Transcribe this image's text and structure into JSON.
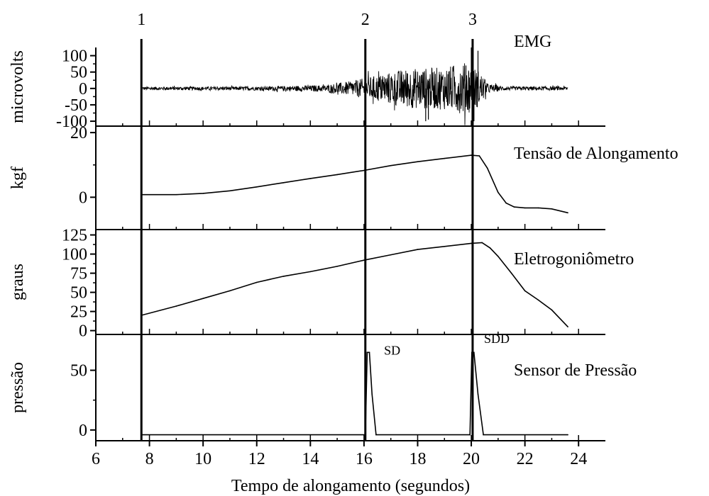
{
  "chart_data": {
    "type": "line",
    "x_axis": {
      "label": "Tempo de alongamento (segundos)",
      "ticks": [
        "6",
        "8",
        "10",
        "12",
        "14",
        "16",
        "18",
        "20",
        "22",
        "24"
      ],
      "range": [
        6,
        25
      ]
    },
    "markers": [
      {
        "label": "1",
        "x": 7.7
      },
      {
        "label": "2",
        "x": 16.05
      },
      {
        "label": "3",
        "x": 20.05
      }
    ],
    "panels": [
      {
        "title": "EMG",
        "ylabel": "microvolts",
        "ylim": [
          -115,
          125
        ],
        "yticks": [
          "100",
          "50",
          "0",
          "-50",
          "-100"
        ],
        "yticks_values": [
          100,
          50,
          0,
          -50,
          -100
        ],
        "color": "#000000",
        "signal": "emg",
        "envelope": [
          [
            7.7,
            5
          ],
          [
            12,
            6
          ],
          [
            14.5,
            10
          ],
          [
            15.5,
            22
          ],
          [
            16.2,
            35
          ],
          [
            17.5,
            60
          ],
          [
            19,
            65
          ],
          [
            19.8,
            80
          ],
          [
            20.3,
            55
          ],
          [
            20.6,
            15
          ],
          [
            21.2,
            6
          ],
          [
            23.6,
            6
          ]
        ],
        "spikes": [
          [
            18.3,
            -100
          ],
          [
            18.4,
            -95
          ],
          [
            20.0,
            125
          ],
          [
            20.1,
            -100
          ],
          [
            20.25,
            115
          ],
          [
            19.8,
            70
          ]
        ]
      },
      {
        "title": "Tensão de Alongamento",
        "ylabel": "kgf",
        "ylim": [
          -10,
          22
        ],
        "yticks": [
          "20",
          "0"
        ],
        "yticks_values": [
          20,
          0
        ],
        "color": "#000000",
        "x": [
          7.7,
          9,
          10,
          11,
          12,
          13,
          14,
          15,
          16,
          17,
          18,
          19,
          20,
          20.3,
          20.6,
          21,
          21.3,
          21.6,
          22,
          22.5,
          23,
          23.6
        ],
        "y": [
          0.8,
          0.8,
          1.2,
          2.0,
          3.2,
          4.5,
          5.8,
          7.0,
          8.3,
          9.8,
          11.0,
          12.0,
          13.0,
          12.8,
          9.0,
          1.5,
          -1.8,
          -3.0,
          -3.3,
          -3.3,
          -3.6,
          -4.8
        ]
      },
      {
        "title": "Eletrogoniômetro",
        "ylabel": "graus",
        "ylim": [
          -5,
          132
        ],
        "yticks": [
          "125",
          "100",
          "75",
          "50",
          "25",
          "0"
        ],
        "yticks_values": [
          125,
          100,
          75,
          50,
          25,
          0
        ],
        "color": "#000000",
        "x": [
          7.7,
          9,
          10,
          11,
          12,
          13,
          14,
          15,
          16,
          17,
          18,
          19,
          20,
          20.4,
          20.7,
          21,
          21.5,
          22,
          22.5,
          23,
          23.6
        ],
        "y": [
          20,
          32,
          42,
          52,
          63,
          71,
          77,
          84,
          92,
          99,
          106,
          110,
          114,
          115,
          108,
          97,
          75,
          52,
          40,
          27,
          5
        ]
      },
      {
        "title": "Sensor de Pressão",
        "ylabel": "pressão",
        "ylim": [
          -9,
          80
        ],
        "yticks": [
          "50",
          "0"
        ],
        "yticks_values": [
          50,
          0
        ],
        "color": "#000000",
        "x": [
          7.7,
          16.05,
          16.12,
          16.2,
          16.3,
          16.45,
          19.95,
          20.02,
          20.1,
          20.25,
          20.45,
          23.6
        ],
        "y": [
          -4,
          -4,
          65,
          65,
          30,
          -4,
          -4,
          65,
          65,
          30,
          -4,
          -4
        ],
        "annotations": [
          {
            "text": "SD",
            "x": 17.05,
            "y": 63
          },
          {
            "text": "SDD",
            "x": 20.95,
            "y": 73
          }
        ]
      }
    ]
  }
}
